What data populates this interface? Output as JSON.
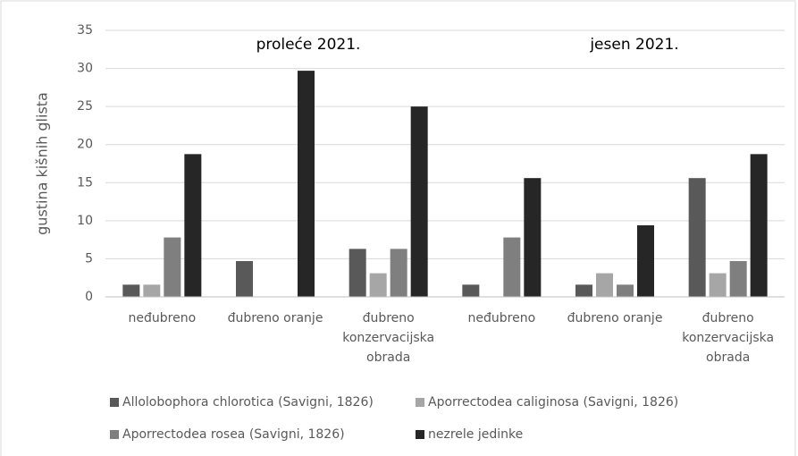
{
  "chart_data": {
    "type": "bar",
    "ylabel": "gustina kišnih glista",
    "annotations": [
      "proleće 2021.",
      "jesen 2021."
    ],
    "categories": [
      "neđubreno",
      "đubreno oranje",
      "đubreno konzervacijska obrada",
      "neđubreno",
      "đubreno oranje",
      "đubreno konzervacijska obrada"
    ],
    "series": [
      {
        "name": "Allolobophora chlorotica (Savigni, 1826)",
        "color": "#595959",
        "values": [
          1.6,
          4.7,
          6.3,
          1.6,
          1.6,
          15.6
        ]
      },
      {
        "name": "Aporrectodea caliginosa (Savigni, 1826)",
        "color": "#a6a6a6",
        "values": [
          1.6,
          0,
          3.1,
          0,
          3.1,
          3.1
        ]
      },
      {
        "name": "Aporrectodea rosea (Savigni, 1826)",
        "color": "#7f7f7f",
        "values": [
          7.8,
          0,
          6.3,
          7.8,
          1.6,
          4.7
        ]
      },
      {
        "name": "nezrele jedinke",
        "color": "#262626",
        "values": [
          18.75,
          29.7,
          25,
          15.6,
          9.4,
          18.75
        ]
      }
    ],
    "ylim": [
      0,
      35
    ],
    "yticks": [
      0,
      5,
      10,
      15,
      20,
      25,
      30,
      35
    ],
    "grid": true
  }
}
